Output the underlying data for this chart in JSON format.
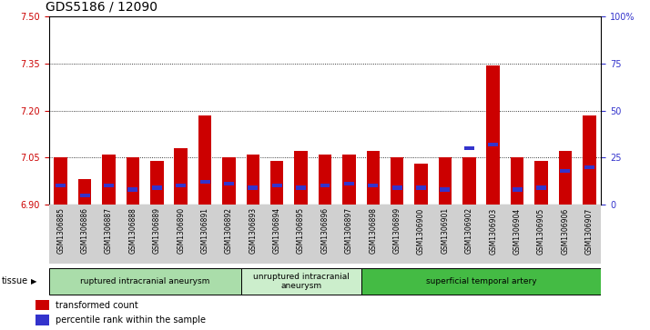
{
  "title": "GDS5186 / 12090",
  "samples": [
    "GSM1306885",
    "GSM1306886",
    "GSM1306887",
    "GSM1306888",
    "GSM1306889",
    "GSM1306890",
    "GSM1306891",
    "GSM1306892",
    "GSM1306893",
    "GSM1306894",
    "GSM1306895",
    "GSM1306896",
    "GSM1306897",
    "GSM1306898",
    "GSM1306899",
    "GSM1306900",
    "GSM1306901",
    "GSM1306902",
    "GSM1306903",
    "GSM1306904",
    "GSM1306905",
    "GSM1306906",
    "GSM1306907"
  ],
  "transformed_count": [
    7.05,
    6.98,
    7.06,
    7.05,
    7.04,
    7.08,
    7.185,
    7.05,
    7.06,
    7.04,
    7.07,
    7.06,
    7.06,
    7.07,
    7.05,
    7.03,
    7.05,
    7.05,
    7.345,
    7.05,
    7.04,
    7.07,
    7.185
  ],
  "percentile_rank": [
    10,
    5,
    10,
    8,
    9,
    10,
    12,
    11,
    9,
    10,
    9,
    10,
    11,
    10,
    9,
    9,
    8,
    30,
    32,
    8,
    9,
    18,
    20
  ],
  "y_min": 6.9,
  "y_max": 7.5,
  "y_ticks": [
    6.9,
    7.05,
    7.2,
    7.35,
    7.5
  ],
  "right_y_ticks": [
    0,
    25,
    50,
    75,
    100
  ],
  "right_y_labels": [
    "0",
    "25",
    "50",
    "75",
    "100%"
  ],
  "bar_color_red": "#cc0000",
  "bar_color_blue": "#3333cc",
  "background_color": "#ffffff",
  "tissue_groups": [
    {
      "label": "ruptured intracranial aneurysm",
      "start": 0,
      "end": 8,
      "color": "#aaddaa"
    },
    {
      "label": "unruptured intracranial\naneurysm",
      "start": 8,
      "end": 13,
      "color": "#cceecc"
    },
    {
      "label": "superficial temporal artery",
      "start": 13,
      "end": 23,
      "color": "#44bb44"
    }
  ],
  "legend_items": [
    {
      "label": "transformed count",
      "color": "#cc0000"
    },
    {
      "label": "percentile rank within the sample",
      "color": "#3333cc"
    }
  ],
  "title_fontsize": 10,
  "tick_fontsize": 7,
  "bar_width": 0.55
}
